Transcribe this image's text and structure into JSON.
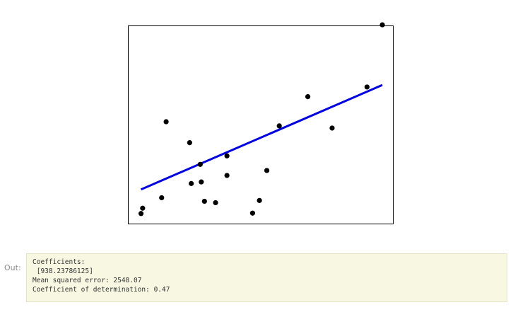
{
  "chart_data": {
    "type": "scatter",
    "title": "",
    "xlabel": "",
    "ylabel": "",
    "xlim": [
      0.0,
      1.0
    ],
    "ylim": [
      0.0,
      1.0
    ],
    "grid": false,
    "axes_ticks_visible": false,
    "points_color": "#000000",
    "line_color": "#0000dd",
    "points": [
      {
        "x": 0.047,
        "y": 0.051
      },
      {
        "x": 0.053,
        "y": 0.078
      },
      {
        "x": 0.125,
        "y": 0.131
      },
      {
        "x": 0.142,
        "y": 0.516
      },
      {
        "x": 0.231,
        "y": 0.41
      },
      {
        "x": 0.237,
        "y": 0.203
      },
      {
        "x": 0.271,
        "y": 0.3
      },
      {
        "x": 0.275,
        "y": 0.211
      },
      {
        "x": 0.287,
        "y": 0.113
      },
      {
        "x": 0.329,
        "y": 0.106
      },
      {
        "x": 0.372,
        "y": 0.343
      },
      {
        "x": 0.372,
        "y": 0.244
      },
      {
        "x": 0.469,
        "y": 0.053
      },
      {
        "x": 0.495,
        "y": 0.117
      },
      {
        "x": 0.523,
        "y": 0.269
      },
      {
        "x": 0.57,
        "y": 0.495
      },
      {
        "x": 0.678,
        "y": 0.643
      },
      {
        "x": 0.77,
        "y": 0.484
      },
      {
        "x": 0.902,
        "y": 0.692
      },
      {
        "x": 0.96,
        "y": 1.007
      }
    ],
    "fit_line": [
      {
        "x": 0.047,
        "y": 0.173
      },
      {
        "x": 0.96,
        "y": 0.702
      }
    ]
  },
  "output": {
    "prompt": "Out:",
    "lines": [
      "Coefficients:",
      " [938.23786125]",
      "Mean squared error: 2548.07",
      "Coefficient of determination: 0.47"
    ]
  }
}
